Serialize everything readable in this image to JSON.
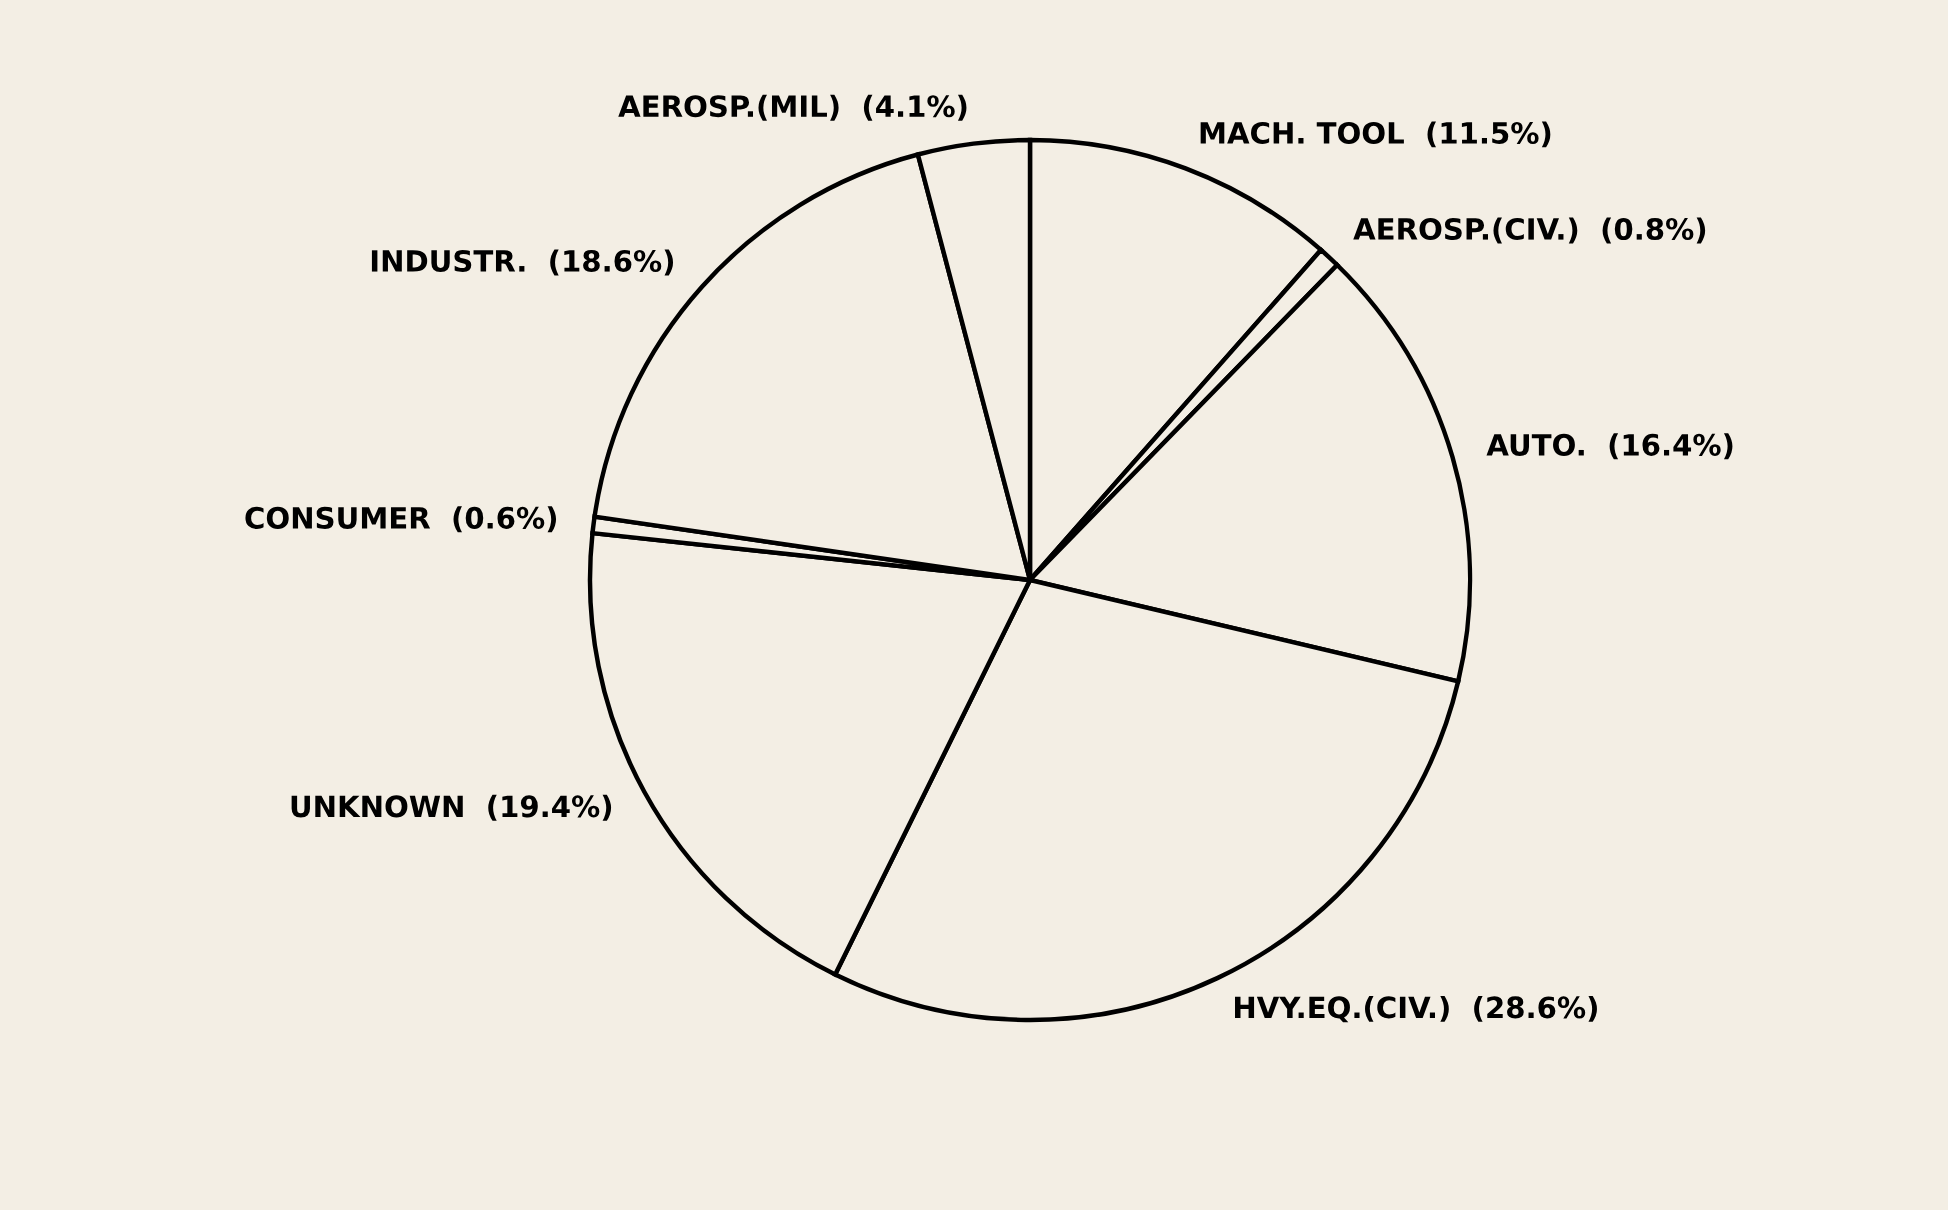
{
  "chart_data": {
    "type": "pie",
    "categories": [
      "MACH. TOOL",
      "AEROSP.(CIV.)",
      "AUTO.",
      "HVY.EQ.(CIV.)",
      "UNKNOWN",
      "CONSUMER",
      "INDUSTR.",
      "AEROSP.(MIL)"
    ],
    "values": [
      11.5,
      0.8,
      16.4,
      28.6,
      19.4,
      0.6,
      18.6,
      4.1
    ],
    "value_labels": [
      "(11.5%)",
      "(0.8%)",
      "(16.4%)",
      "(28.6%)",
      "(19.4%)",
      "(0.6%)",
      "(18.6%)",
      "(4.1%)"
    ],
    "colors": [
      "#f3eee4",
      "#f3eee4",
      "#f3eee4",
      "#f3eee4",
      "#f3eee4",
      "#f3eee4",
      "#f3eee4",
      "#f3eee4"
    ]
  }
}
